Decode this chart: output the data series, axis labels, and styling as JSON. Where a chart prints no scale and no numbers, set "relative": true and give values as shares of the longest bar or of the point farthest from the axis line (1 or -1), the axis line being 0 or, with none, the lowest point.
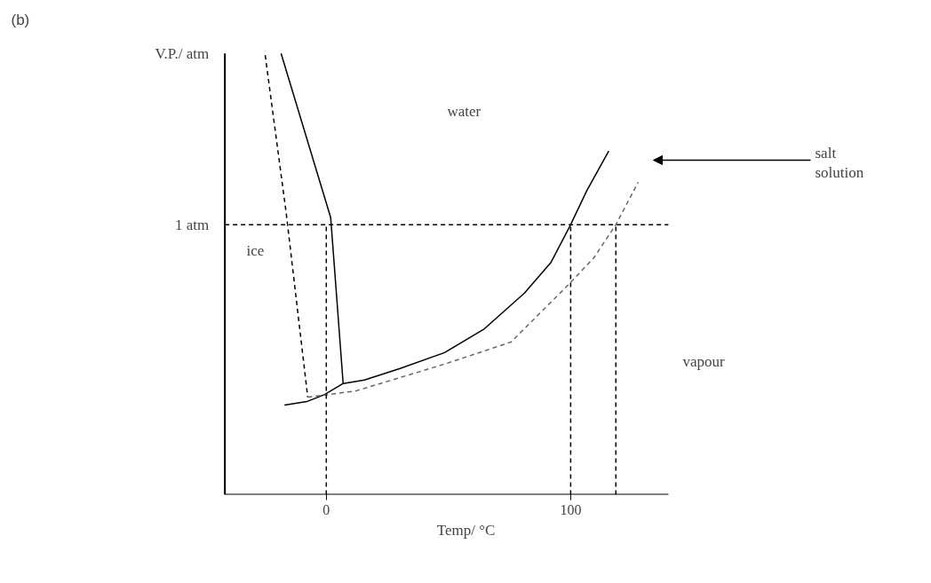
{
  "chart_data": {
    "type": "line",
    "relative": true,
    "xlabel": "Temp/ °C",
    "ylabel": "V.P./ atm",
    "xlim": [
      -41.5,
      140
    ],
    "xticks": [
      0,
      100
    ],
    "grid": false,
    "series": [
      {
        "color": "#000000",
        "line_style": "solid",
        "x": [
          -18.5,
          1.8,
          6.9
        ],
        "values": [
          1.0,
          0.628,
          0.252
        ]
      },
      {
        "color": "#000000",
        "line_style": "dashed",
        "x": [
          -25,
          -16.4,
          -7.6
        ],
        "values": [
          0.996,
          0.638,
          0.221
        ]
      },
      {
        "color": "#000000",
        "line_style": "solid",
        "x": [
          -17.1,
          -8,
          -0.7,
          6.9,
          15.6,
          30.2,
          48.4,
          64.7,
          81.1,
          92,
          100,
          106.5,
          115.6
        ],
        "values": [
          0.203,
          0.211,
          0.227,
          0.252,
          0.26,
          0.286,
          0.322,
          0.376,
          0.457,
          0.527,
          0.612,
          0.688,
          0.779
        ]
      },
      {
        "color": "#666666",
        "line_style": "dashed",
        "x": [
          -7.6,
          12,
          48.4,
          75.6,
          99.3,
          109.5,
          118.5,
          127.6
        ],
        "values": [
          0.221,
          0.235,
          0.296,
          0.346,
          0.477,
          0.537,
          0.612,
          0.708
        ]
      }
    ],
    "ref_lines": [
      {
        "axis": "y",
        "value": 0.612,
        "label": "1 atm",
        "line_style": "dashed",
        "color": "#000000"
      },
      {
        "axis": "x",
        "value": 0,
        "label": null,
        "line_style": "dashed",
        "color": "#000000"
      },
      {
        "axis": "x",
        "value": 100,
        "label": null,
        "line_style": "dashed",
        "color": "#000000"
      },
      {
        "axis": "x",
        "value": 118.5,
        "label": null,
        "line_style": "dashed",
        "color": "#000000"
      }
    ],
    "annotations": [
      "(b)",
      "water",
      "ice",
      "vapour",
      "salt\nsolution"
    ]
  }
}
